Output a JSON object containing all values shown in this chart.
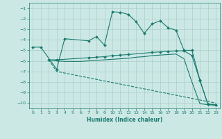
{
  "xlabel": "Humidex (Indice chaleur)",
  "bg_color": "#cce8e5",
  "grid_color": "#aacfcc",
  "line_color": "#1a7a6e",
  "xlim": [
    -0.5,
    23.5
  ],
  "ylim": [
    -10.5,
    -0.5
  ],
  "yticks": [
    -1,
    -2,
    -3,
    -4,
    -5,
    -6,
    -7,
    -8,
    -9,
    -10
  ],
  "xticks": [
    0,
    1,
    2,
    3,
    4,
    5,
    6,
    7,
    8,
    9,
    10,
    11,
    12,
    13,
    14,
    15,
    16,
    17,
    18,
    19,
    20,
    21,
    22,
    23
  ],
  "line1_x": [
    0,
    1,
    3,
    4,
    7,
    8,
    9,
    10,
    11,
    12,
    13,
    14,
    15,
    16,
    17,
    18,
    19,
    20,
    21,
    22,
    23
  ],
  "line1_y": [
    -4.7,
    -4.7,
    -6.8,
    -3.9,
    -4.1,
    -3.7,
    -4.5,
    -1.35,
    -1.4,
    -1.6,
    -2.3,
    -3.4,
    -2.5,
    -2.2,
    -2.85,
    -3.1,
    -5.0,
    -5.0,
    -7.8,
    -10.1,
    -10.15
  ],
  "line2_x": [
    2,
    3,
    7,
    8,
    9,
    10,
    11,
    12,
    15,
    16,
    17,
    18,
    19,
    20,
    21,
    22,
    23
  ],
  "line2_y": [
    -5.9,
    -5.9,
    -5.7,
    -5.65,
    -5.6,
    -5.5,
    -5.45,
    -5.4,
    -5.2,
    -5.15,
    -5.1,
    -5.05,
    -5.05,
    -5.5,
    -7.85,
    -10.1,
    -10.2
  ],
  "line3_x": [
    2,
    3,
    4,
    5,
    6,
    7,
    8,
    9,
    10,
    11,
    12,
    13,
    14,
    15,
    16,
    17,
    18,
    19,
    20,
    21,
    22,
    23
  ],
  "line3_y": [
    -5.9,
    -6.0,
    -6.05,
    -6.05,
    -6.05,
    -6.0,
    -5.95,
    -5.9,
    -5.85,
    -5.8,
    -5.75,
    -5.65,
    -5.6,
    -5.5,
    -5.45,
    -5.4,
    -5.35,
    -5.8,
    -8.0,
    -10.05,
    -10.15,
    -10.2
  ],
  "line4_x": [
    2,
    3,
    4,
    5,
    6,
    7,
    8,
    9,
    10,
    11,
    12,
    13,
    14,
    15,
    16,
    17,
    18,
    19,
    20,
    21,
    22,
    23
  ],
  "line4_y": [
    -5.9,
    -7.0,
    -7.15,
    -7.3,
    -7.45,
    -7.6,
    -7.75,
    -7.9,
    -8.05,
    -8.2,
    -8.35,
    -8.5,
    -8.65,
    -8.8,
    -8.95,
    -9.1,
    -9.25,
    -9.4,
    -9.55,
    -9.7,
    -9.85,
    -10.0
  ]
}
